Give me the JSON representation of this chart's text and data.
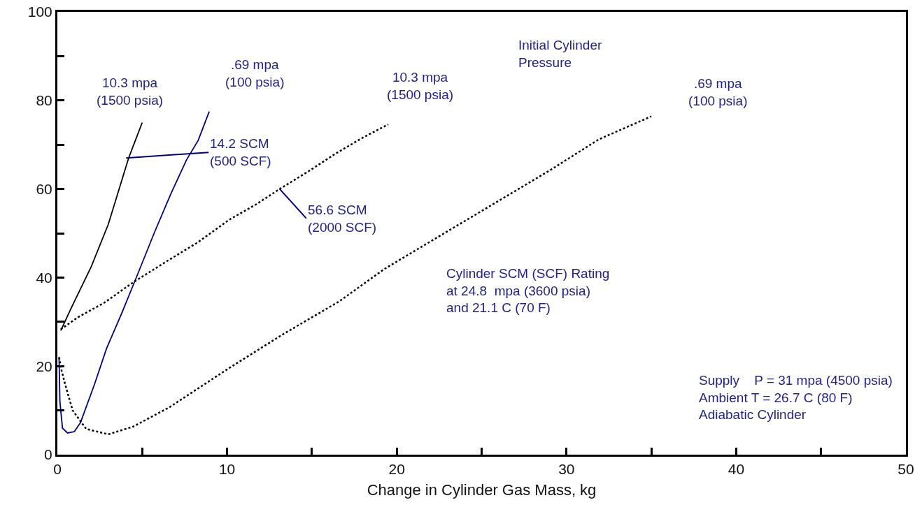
{
  "chart_data": {
    "type": "line",
    "xlabel": "Change in Cylinder Gas Mass, kg",
    "xlim": [
      0,
      50
    ],
    "xticks": [
      0,
      {
        "value": 5,
        "label": null
      },
      10,
      {
        "value": 15,
        "label": null
      },
      20,
      {
        "value": 25,
        "label": null
      },
      30,
      {
        "value": 35,
        "label": null
      },
      40,
      {
        "value": 45,
        "label": null
      },
      50
    ],
    "ylim": [
      0,
      100
    ],
    "yticks": [
      0,
      {
        "value": 10,
        "label": null
      },
      20,
      {
        "value": 30,
        "label": null
      },
      40,
      {
        "value": 50,
        "label": null
      },
      60,
      {
        "value": 70,
        "label": null
      },
      80,
      {
        "value": 90,
        "label": null
      },
      100
    ],
    "marker": "none",
    "series": [
      {
        "color": "#000000",
        "line_style": "solid",
        "x": [
          0.2,
          0.8,
          2,
          3,
          3.8,
          4.2,
          4.6,
          5
        ],
        "values": [
          28,
          33,
          42.5,
          52,
          62,
          67,
          71,
          75
        ]
      },
      {
        "color": "#000080",
        "line_style": "solid",
        "x": [
          0.1,
          0.15,
          0.3,
          0.6,
          1,
          1.36,
          2.2,
          2.9,
          3.8,
          4.8,
          5.7,
          6.7,
          7.6,
          8.3,
          8.95
        ],
        "values": [
          22,
          12,
          6,
          4.9,
          5.2,
          7.2,
          16,
          24,
          32,
          41.4,
          50,
          59,
          66.5,
          71,
          77.5
        ]
      },
      {
        "color": "#000000",
        "line_style": "dotted",
        "x": [
          0.2,
          1.2,
          2.76,
          4.5,
          6.5,
          8.3,
          10.1,
          11.7,
          13.1,
          14.8,
          16.4,
          18,
          19.5
        ],
        "values": [
          28.3,
          31,
          34.3,
          39,
          43.8,
          48,
          53,
          56.5,
          60,
          64,
          68,
          71.6,
          74.6
        ]
      },
      {
        "color": "#000000",
        "line_style": "dotted",
        "x": [
          0.1,
          0.25,
          0.45,
          0.9,
          1.7,
          3,
          4.45,
          6.6,
          10.1,
          13.3,
          16.6,
          19.3,
          23.1,
          25.6,
          29.1,
          31.9,
          35
        ],
        "values": [
          22,
          19,
          16,
          10,
          5.8,
          4.6,
          6.3,
          10.7,
          19.5,
          27.2,
          34.6,
          42,
          50.7,
          56.4,
          64.4,
          71.2,
          76.4
        ]
      }
    ],
    "annotations": [
      {
        "text": "10.3 mpa\n(1500 psia)",
        "x": 5,
        "y": 75
      },
      {
        "text": ".69 mpa\n(100 psia)",
        "x": 8.95,
        "y": 77.5
      },
      {
        "text": "10.3 mpa\n(1500 psia)",
        "x": 19.5,
        "y": 74.6
      },
      {
        "text": ".69 mpa\n(100 psia)",
        "x": 35,
        "y": 76.4
      },
      {
        "text": "14.2 SCM\n(500 SCF)",
        "x": 4.05,
        "y": 67
      },
      {
        "text": "56.6 SCM\n(2000 SCF)",
        "x": 13.1,
        "y": 60
      },
      "Initial Cylinder\nPressure",
      "Cylinder SCM (SCF) Rating\nat 24.8  mpa (3600 psia)\nand 21.1 C (70 F)",
      "Supply    P = 31 mpa (4500 psia)\nAmbient T = 26.7 C (80 F)\nAdiabatic Cylinder"
    ]
  }
}
